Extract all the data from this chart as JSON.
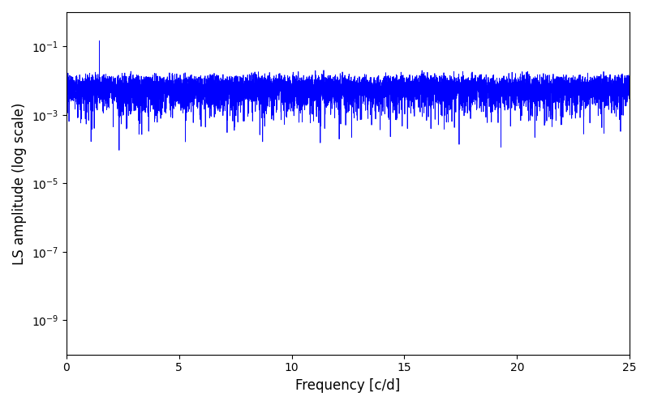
{
  "xlabel": "Frequency [c/d]",
  "ylabel": "LS amplitude (log scale)",
  "xlim": [
    0,
    25
  ],
  "ylim_log_min": 1e-10,
  "ylim_log_max": 1.0,
  "line_color": "#0000ff",
  "line_width": 0.6,
  "background_color": "#ffffff",
  "freq_max": 25.0,
  "n_freq": 8000,
  "yticks": [
    1e-09,
    1e-07,
    1e-05,
    0.001,
    0.1
  ],
  "xticks": [
    0,
    5,
    10,
    15,
    20,
    25
  ]
}
